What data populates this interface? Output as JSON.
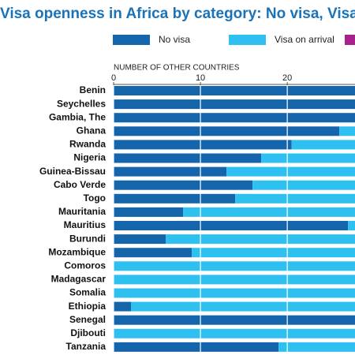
{
  "chart_data": {
    "type": "stacked-barh",
    "title": "Visa openness in Africa by category: No visa, Visa",
    "xlabel": "NUMBER OF OTHER COUNTRIES",
    "categories": [
      "Benin",
      "Seychelles",
      "Gambia, The",
      "Ghana",
      "Rwanda",
      "Nigeria",
      "Guinea-Bissau",
      "Cabo Verde",
      "Togo",
      "Mauritania",
      "Mauritius",
      "Burundi",
      "Mozambique",
      "Comoros",
      "Madagascar",
      "Somalia",
      "Ethiopia",
      "Senegal",
      "Djibouti",
      "Tanzania"
    ],
    "series": [
      {
        "name": "No visa",
        "color": "#1565ad",
        "values": [
          30,
          30,
          30,
          26,
          20.5,
          17,
          13,
          16,
          14,
          8,
          27,
          6,
          9,
          0,
          0,
          0,
          2,
          30,
          0,
          19
        ]
      },
      {
        "name": "Visa on arrival",
        "color": "#2ec0f0",
        "values": [
          0,
          0,
          0,
          4,
          9.5,
          13,
          17,
          14,
          16,
          22,
          3,
          24,
          21,
          30,
          30,
          30,
          28,
          0,
          30,
          11
        ]
      }
    ],
    "xlim": [
      0,
      27.8
    ],
    "xticks": [
      0,
      10,
      20
    ],
    "grid": true
  }
}
